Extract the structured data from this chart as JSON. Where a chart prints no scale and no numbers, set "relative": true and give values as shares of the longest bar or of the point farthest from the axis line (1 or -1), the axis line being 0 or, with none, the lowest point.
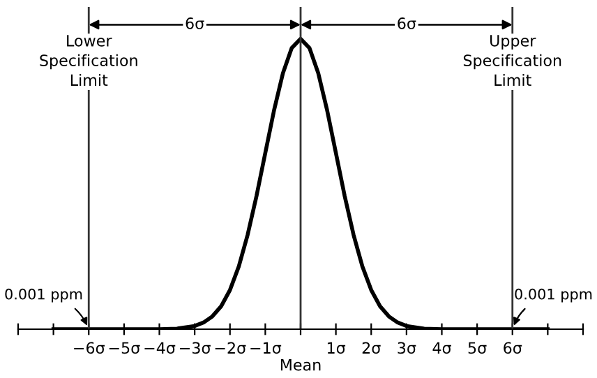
{
  "chart_data": {
    "type": "line",
    "relative": true,
    "xlabel": "Mean",
    "x": [
      -7,
      -4.5,
      -4,
      -3.5,
      -3,
      -2.75,
      -2.5,
      -2.25,
      -2,
      -1.75,
      -1.5,
      -1.25,
      -1,
      -0.75,
      -0.5,
      -0.25,
      0,
      0.25,
      0.5,
      0.75,
      1,
      1.25,
      1.5,
      1.75,
      2,
      2.25,
      2.5,
      2.75,
      3,
      3.5,
      4,
      4.5,
      7
    ],
    "series": [
      {
        "color": "#000000",
        "values": [
          0,
          0,
          0,
          0.002,
          0.011,
          0.023,
          0.044,
          0.079,
          0.135,
          0.216,
          0.325,
          0.458,
          0.607,
          0.755,
          0.882,
          0.969,
          1,
          0.969,
          0.882,
          0.755,
          0.607,
          0.458,
          0.325,
          0.216,
          0.135,
          0.079,
          0.044,
          0.023,
          0.011,
          0.002,
          0,
          0,
          0
        ]
      }
    ],
    "xlim": [
      -8,
      8
    ],
    "xticks": [
      {
        "value": -8,
        "label": null
      },
      {
        "value": -7,
        "label": null
      },
      {
        "value": -6,
        "label": "−6σ"
      },
      {
        "value": -5,
        "label": "−5σ"
      },
      {
        "value": -4,
        "label": "−4σ"
      },
      {
        "value": -3,
        "label": "−3σ"
      },
      {
        "value": -2,
        "label": "−2σ"
      },
      {
        "value": -1,
        "label": "−1σ"
      },
      {
        "value": 0,
        "label": null
      },
      {
        "value": 1,
        "label": "1σ"
      },
      {
        "value": 2,
        "label": "2σ"
      },
      {
        "value": 3,
        "label": "3σ"
      },
      {
        "value": 4,
        "label": "4σ"
      },
      {
        "value": 5,
        "label": "5σ"
      },
      {
        "value": 6,
        "label": "6σ"
      },
      {
        "value": 7,
        "label": null
      },
      {
        "value": 8,
        "label": null
      }
    ],
    "ref_lines": [
      {
        "axis": "x",
        "value": -6,
        "label": "Lower\nSpecification\nLimit",
        "color": "#333333"
      },
      {
        "axis": "x",
        "value": 0,
        "label": null,
        "color": "#333333"
      },
      {
        "axis": "x",
        "value": 6,
        "label": "Upper\nSpecification\nLimit",
        "color": "#333333"
      }
    ],
    "annotations": [
      "6σ",
      "6σ",
      {
        "text": "0.001 ppm",
        "x": -6,
        "y": 0
      },
      {
        "text": "0.001 ppm",
        "x": 6,
        "y": 0
      }
    ],
    "grid": false,
    "legend": false,
    "marker": "none",
    "line_style": "solid"
  }
}
